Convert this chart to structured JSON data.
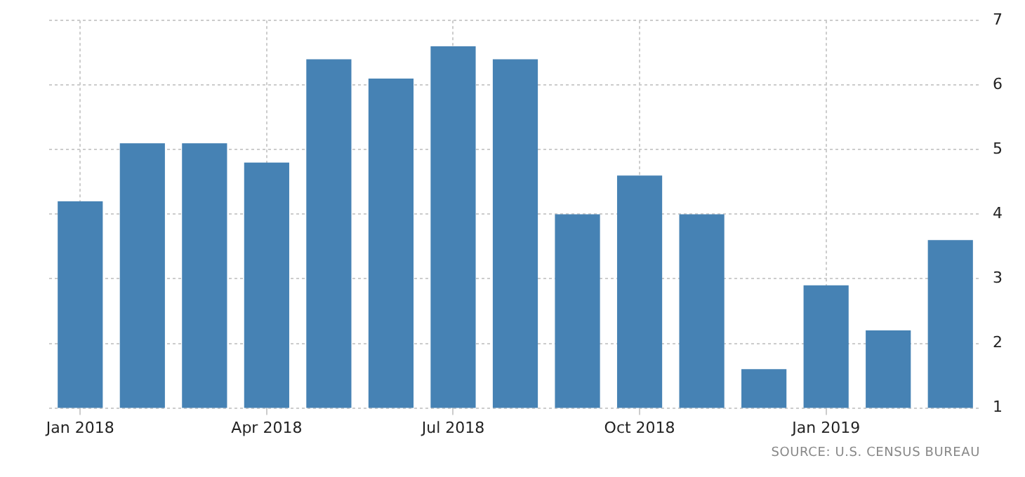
{
  "chart_data": {
    "type": "bar",
    "categories": [
      "Jan 2018",
      null,
      null,
      "Apr 2018",
      null,
      null,
      "Jul 2018",
      null,
      null,
      "Oct 2018",
      null,
      null,
      "Jan 2019",
      null,
      null
    ],
    "values": [
      4.2,
      5.1,
      5.1,
      4.8,
      6.4,
      6.1,
      6.6,
      6.4,
      4.0,
      4.6,
      4.0,
      1.6,
      2.9,
      2.2,
      3.6
    ],
    "color": "#4682b4",
    "ylim": [
      1,
      7
    ],
    "yticks": [
      1,
      2,
      3,
      4,
      5,
      6,
      7
    ],
    "grid": true,
    "annotations": [
      "SOURCE: U.S. CENSUS BUREAU"
    ]
  }
}
